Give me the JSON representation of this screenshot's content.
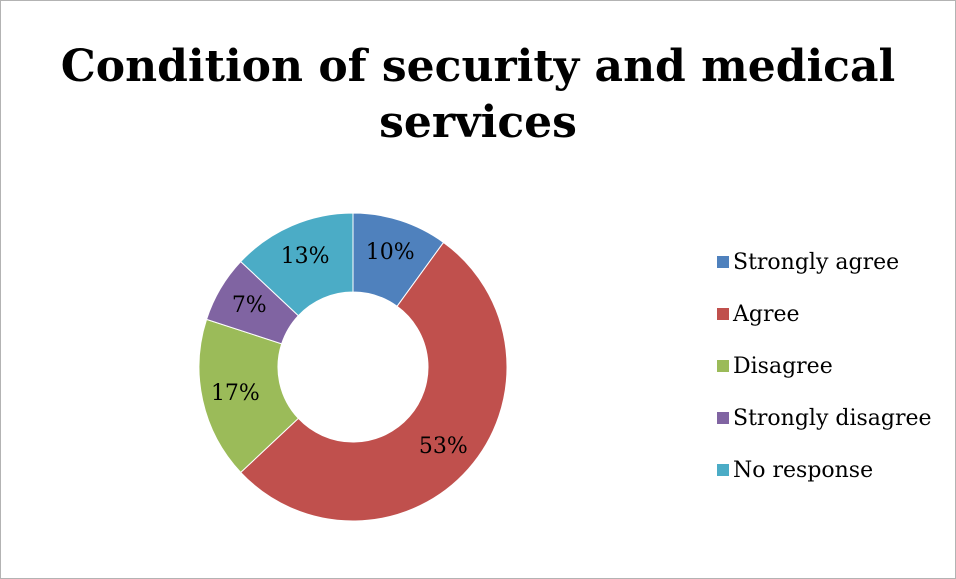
{
  "chart_data": {
    "type": "pie",
    "title": "Condition of security and medical services",
    "categories": [
      "Strongly agree",
      "Agree",
      "Disagree",
      "Strongly disagree",
      "No response"
    ],
    "values": [
      10,
      53,
      17,
      7,
      13
    ],
    "value_labels": [
      "10%",
      "53%",
      "17%",
      "7%",
      "13%"
    ],
    "colors": [
      "#4f81bd",
      "#c0504d",
      "#9bbb59",
      "#8064a2",
      "#4bacc6"
    ],
    "donut": true,
    "legend_position": "right"
  }
}
